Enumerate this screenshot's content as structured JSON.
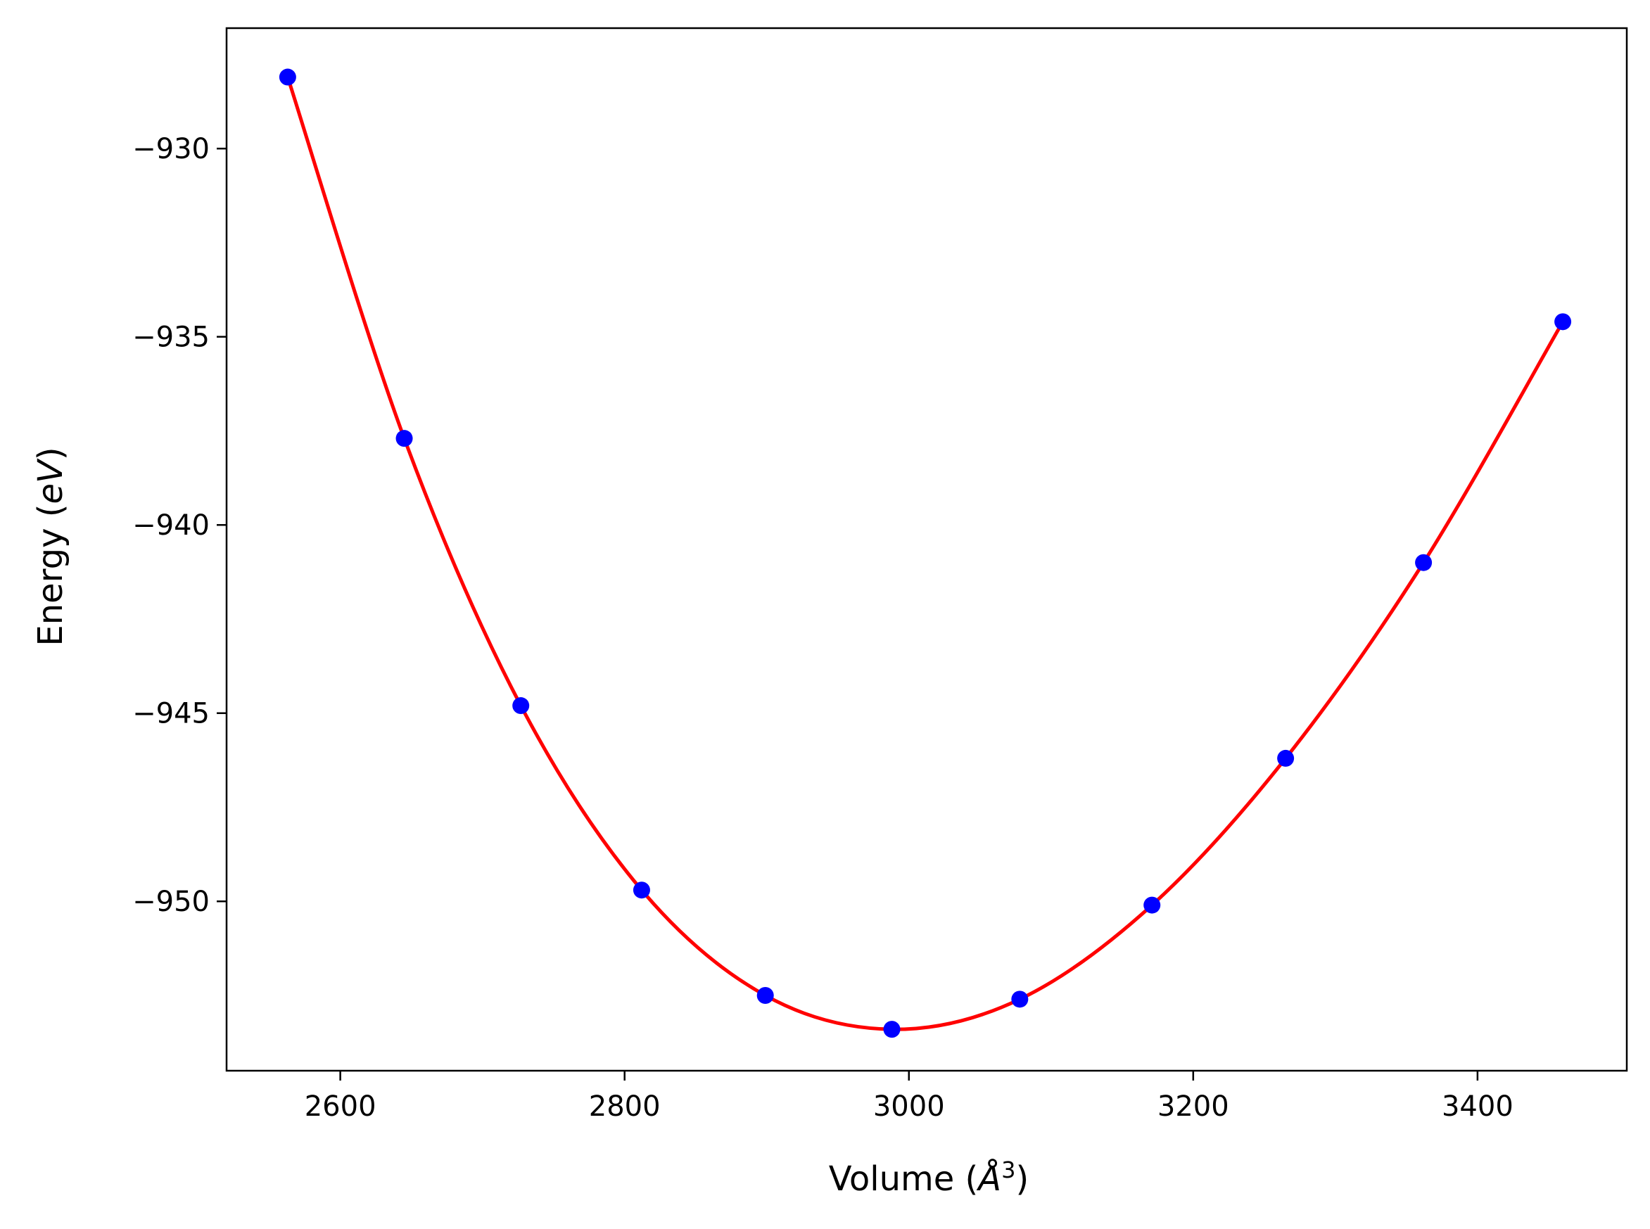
{
  "chart_data": {
    "type": "scatter",
    "title": "",
    "xlabel": "Volume",
    "xlabel_unit": "Å",
    "xlabel_unit_power": "3",
    "ylabel": "Energy",
    "ylabel_unit": "eV",
    "xlim": [
      2520,
      3505
    ],
    "ylim": [
      -954.5,
      -926.8
    ],
    "xticks": [
      2600,
      2800,
      3000,
      3200,
      3400
    ],
    "yticks": [
      -930,
      -935,
      -940,
      -945,
      -950
    ],
    "xtick_labels": [
      "2600",
      "2800",
      "3000",
      "3200",
      "3400"
    ],
    "ytick_labels": [
      "−930",
      "−935",
      "−940",
      "−945",
      "−950"
    ],
    "grid": false,
    "series": [
      {
        "kind": "points",
        "color": "#0000ff",
        "x": [
          2563,
          2645,
          2727,
          2812,
          2899,
          2988,
          3078,
          3171,
          3265,
          3362,
          3460
        ],
        "y": [
          -928.1,
          -937.7,
          -944.8,
          -949.7,
          -952.5,
          -953.4,
          -952.6,
          -950.1,
          -946.2,
          -941.0,
          -934.6
        ]
      },
      {
        "kind": "fit_curve",
        "color": "#ff0000",
        "x": [
          2563,
          2645,
          2727,
          2812,
          2899,
          2988,
          3078,
          3171,
          3265,
          3362,
          3460
        ],
        "y": [
          -928.1,
          -937.7,
          -944.8,
          -949.7,
          -952.5,
          -953.4,
          -952.6,
          -950.1,
          -946.2,
          -941.0,
          -934.6
        ]
      }
    ]
  }
}
